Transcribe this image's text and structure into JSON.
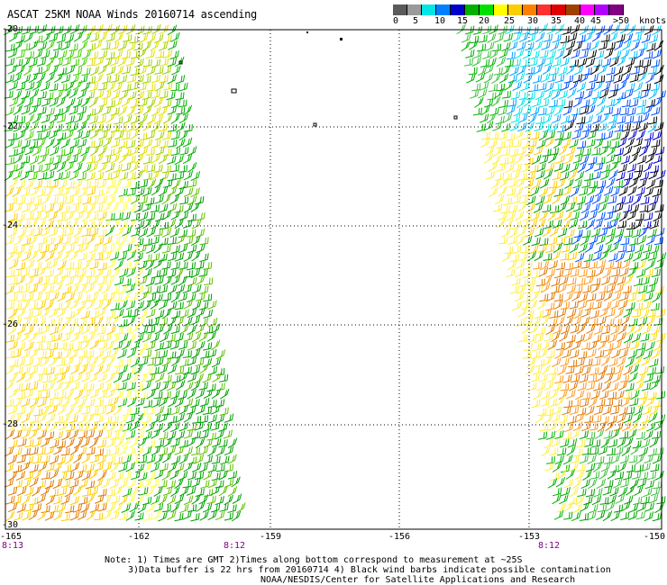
{
  "title": "ASCAT 25KM NOAA Winds 20160714 ascending",
  "colorbar": {
    "labels": [
      "0",
      "5",
      "10",
      "15",
      "20",
      "25",
      "30",
      "35",
      "40",
      "45",
      ">50"
    ],
    "units": "knots",
    "colors": [
      "#5a5a5a",
      "#9a9a9a",
      "#00e5e5",
      "#0080ff",
      "#0000cd",
      "#00b000",
      "#00e000",
      "#ffff00",
      "#ffcc00",
      "#ff8000",
      "#ff3030",
      "#e00000",
      "#a04000",
      "#ff00ff",
      "#b000ff",
      "#800080"
    ]
  },
  "map": {
    "lat_labels": [
      "-20",
      "-22",
      "-24",
      "-26",
      "-28",
      "-30"
    ],
    "lon_labels": [
      "-165",
      "-162",
      "-159",
      "-156",
      "-153",
      "-150"
    ],
    "lat_range": [
      -30,
      -20
    ],
    "lon_range": [
      -165,
      -150
    ],
    "grid": true
  },
  "time_labels": [
    "8:13",
    "8:12",
    "8:12"
  ],
  "notes": [
    "Note: 1) Times are GMT 2)Times along bottom correspond to measurement at ~25S",
    "3)Data buffer is 22 hrs from 20160714 4) Black wind barbs indicate possible contamination",
    "NOAA/NESDIS/Center for Satellite Applications and Research"
  ]
}
